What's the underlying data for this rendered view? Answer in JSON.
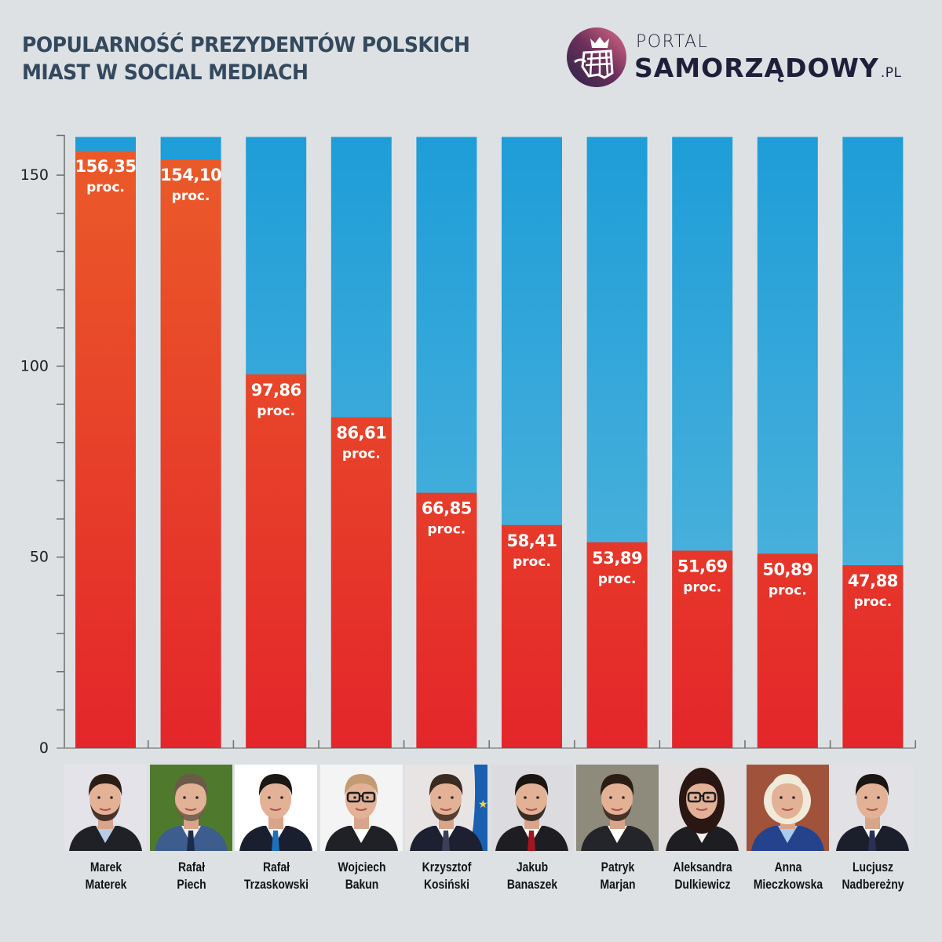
{
  "header": {
    "title_line1": "POPULARNOŚĆ PREZYDENTÓW POLSKICH",
    "title_line2": "MIAST W SOCIAL MEDIACH"
  },
  "logo": {
    "portal": "PORTAL",
    "name": "SAMORZĄDOWY",
    "tld": ".PL"
  },
  "colors": {
    "background": "#dde1e4",
    "bar_top_blue": "#1e9dd8",
    "bar_bottom_blue": "#55b6dc",
    "bar_top_orange": "#e95b2a",
    "bar_bottom_red": "#e42629",
    "axis": "#6d6d6d",
    "title": "#34495e"
  },
  "chart_data": {
    "type": "bar",
    "title": "POPULARNOŚĆ PREZYDENTÓW POLSKICH MIAST W SOCIAL MEDIACH",
    "xlabel": "",
    "ylabel": "",
    "ylim": [
      0,
      160
    ],
    "yticks": [
      0,
      50,
      100,
      150
    ],
    "minor_tick_step": 10,
    "grid": false,
    "legend": "none",
    "value_unit": "proc.",
    "categories": [
      "Marek Materek",
      "Rafał Piech",
      "Rafał Trzaskowski",
      "Wojciech Bakun",
      "Krzysztof Kosiński",
      "Jakub Banaszek",
      "Patryk Marjan",
      "Aleksandra Dulkiewicz",
      "Anna Mieczkowska",
      "Lucjusz Nadbereżny"
    ],
    "values": [
      156.35,
      154.1,
      97.86,
      86.61,
      66.85,
      58.41,
      53.89,
      51.69,
      50.89,
      47.88
    ],
    "value_labels": [
      "156,35",
      "154,10",
      "97,86",
      "86,61",
      "66,85",
      "58,41",
      "53,89",
      "51,69",
      "50,89",
      "47,88"
    ],
    "background_bar_max": 160
  },
  "people": [
    {
      "first": "Marek",
      "last": "Materek",
      "photo_bg": "#e4e3ea",
      "suit": "#1f2126",
      "shirt": "#b8cce4",
      "tie": null,
      "hair": "#2b1d16",
      "glasses": false,
      "female": false,
      "beard": true
    },
    {
      "first": "Rafał",
      "last": "Piech",
      "photo_bg": "#4f7a2d",
      "suit": "#3c5d8e",
      "shirt": "#eef0f3",
      "tie": "#1d2c4a",
      "hair": "#6a5a48",
      "glasses": false,
      "female": false,
      "beard": true
    },
    {
      "first": "Rafał",
      "last": "Trzaskowski",
      "photo_bg": "#ffffff",
      "suit": "#1a1f30",
      "shirt": "#ffffff",
      "tie": "#1c6fb8",
      "hair": "#1b1714",
      "glasses": false,
      "female": false,
      "beard": false
    },
    {
      "first": "Wojciech",
      "last": "Bakun",
      "photo_bg": "#f4f4f4",
      "suit": "#1f2126",
      "shirt": "#ffffff",
      "tie": null,
      "hair": "#c49a72",
      "glasses": true,
      "female": false,
      "beard": false
    },
    {
      "first": "Krzysztof",
      "last": "Kosiński",
      "photo_bg": "#e9e4e4",
      "suit": "#1c2030",
      "shirt": "#ffffff",
      "tie": "#3b3f5a",
      "hair": "#3a2a1f",
      "glasses": false,
      "female": false,
      "beard": true,
      "flag": "eu"
    },
    {
      "first": "Jakub",
      "last": "Banaszek",
      "photo_bg": "#dcdbe0",
      "suit": "#1e1e22",
      "shirt": "#ffffff",
      "tie": "#a4161f",
      "hair": "#1b1512",
      "glasses": false,
      "female": false,
      "beard": true
    },
    {
      "first": "Patryk",
      "last": "Marjan",
      "photo_bg": "#8e8a7c",
      "suit": "#23252b",
      "shirt": "#ffffff",
      "tie": null,
      "hair": "#2b1d14",
      "glasses": false,
      "female": false,
      "beard": true
    },
    {
      "first": "Aleksandra",
      "last": "Dulkiewicz",
      "photo_bg": "#e3dedf",
      "suit": "#1d1d22",
      "shirt": "#f3f1ee",
      "tie": null,
      "hair": "#2a1612",
      "glasses": true,
      "female": true,
      "beard": false
    },
    {
      "first": "Anna",
      "last": "Mieczkowska",
      "photo_bg": "#a0533a",
      "suit": "#24438c",
      "shirt": "#a9cbee",
      "tie": null,
      "hair": "#f1eadb",
      "glasses": false,
      "female": true,
      "beard": false
    },
    {
      "first": "Lucjusz",
      "last": "Nadbereżny",
      "photo_bg": "#e2e1e6",
      "suit": "#1b1e2b",
      "shirt": "#ffffff",
      "tie": "#2c2f55",
      "hair": "#1a1412",
      "glasses": false,
      "female": false,
      "beard": false
    }
  ]
}
